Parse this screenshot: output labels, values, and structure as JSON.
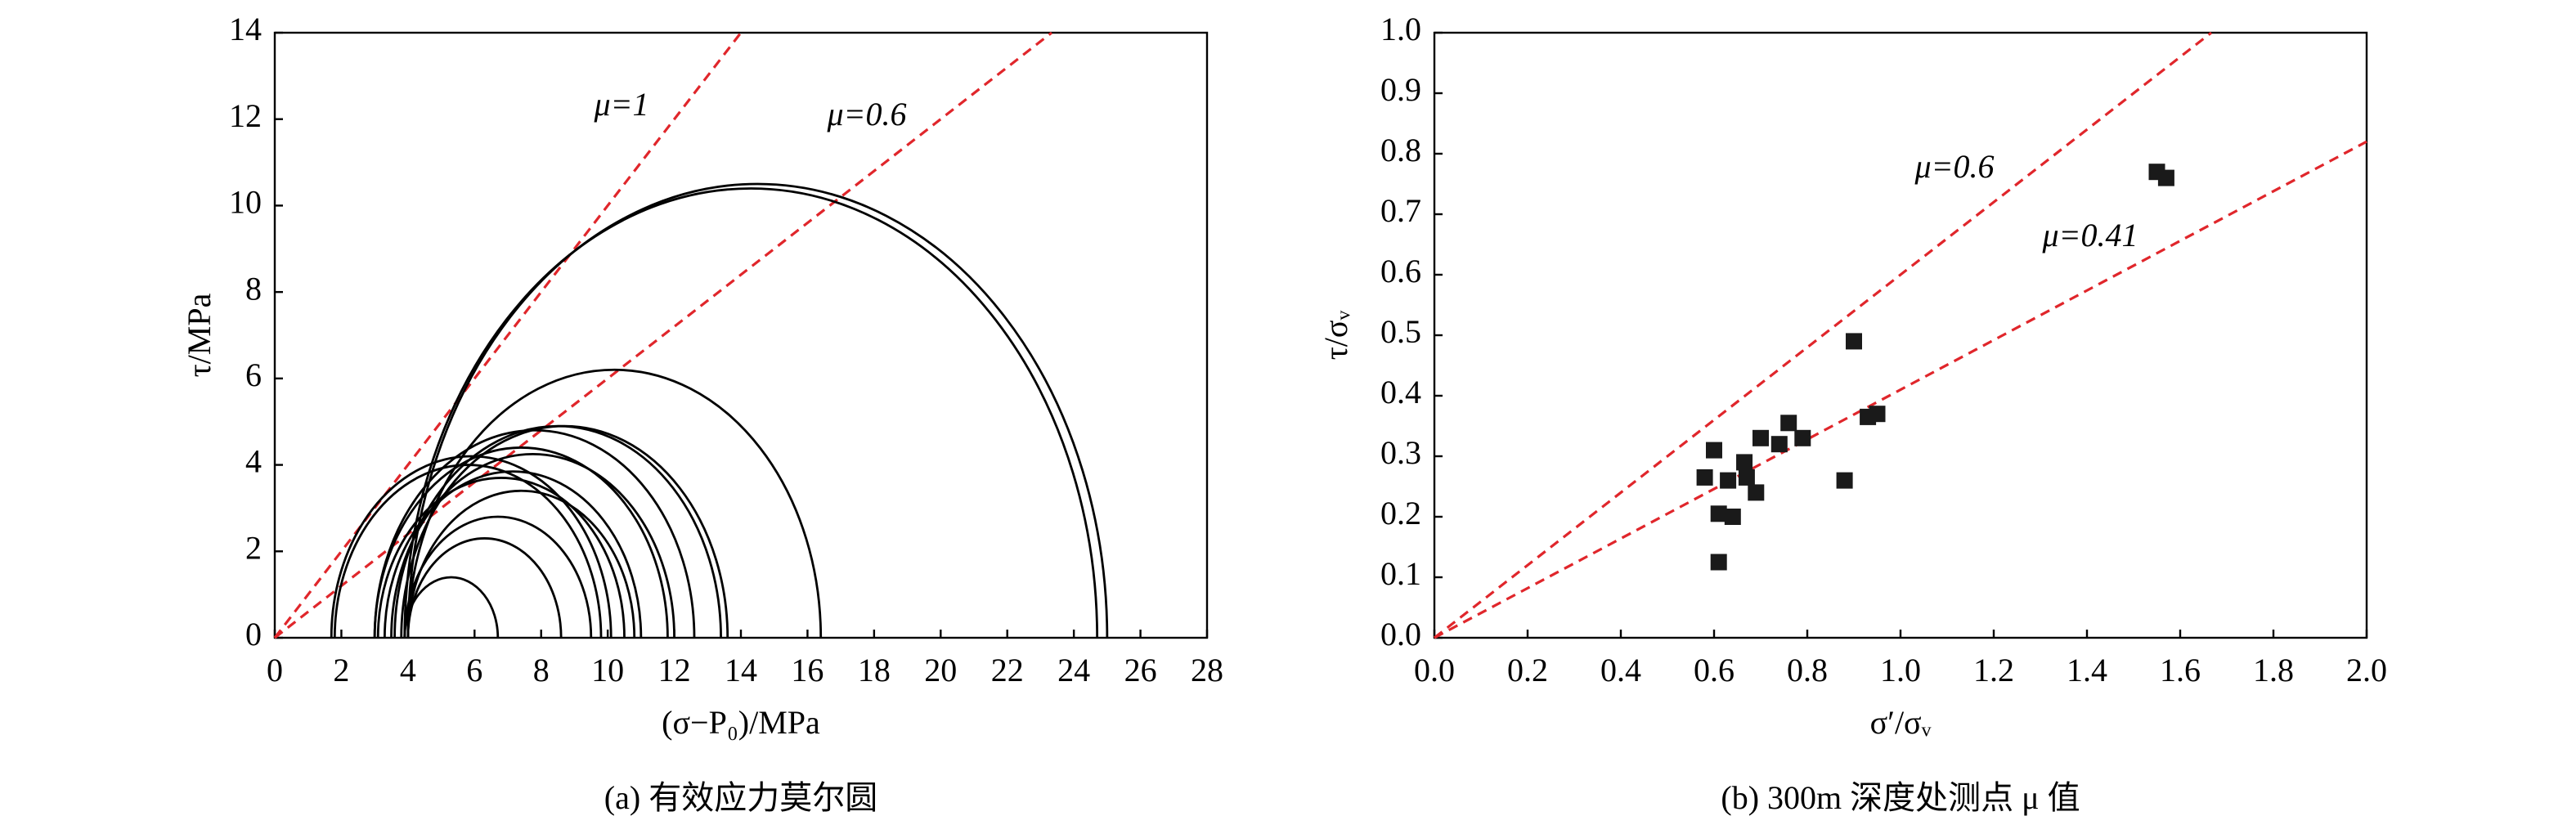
{
  "chart_data": [
    {
      "type": "mohr",
      "xlabel": "(σ−P₀)/MPa",
      "ylabel": "τ/MPa",
      "caption": "(a) 有效应力莫尔圆",
      "xlim": [
        0,
        28
      ],
      "ylim": [
        0,
        14
      ],
      "xticks": [
        0,
        2,
        4,
        6,
        8,
        10,
        12,
        14,
        16,
        18,
        20,
        22,
        24,
        26,
        28
      ],
      "yticks": [
        0,
        2,
        4,
        6,
        8,
        10,
        12,
        14
      ],
      "circle_color": "#000000",
      "sigma3": [
        1.7,
        1.8,
        3.0,
        3.6,
        3.8,
        4.0,
        3.0,
        3.1,
        3.3,
        3.5,
        4.0,
        3.9,
        4.0,
        3.9,
        3.9,
        4.0
      ],
      "sigma1": [
        10.1,
        9.8,
        11.8,
        13.4,
        13.6,
        16.4,
        12.6,
        10.5,
        11.0,
        12.0,
        10.8,
        9.5,
        8.6,
        6.7,
        24.7,
        25.0
      ],
      "lines": [
        {
          "name": "μ=1",
          "slope": 1,
          "color": "#e0262b"
        },
        {
          "name": "μ=0.6",
          "slope": 0.6,
          "color": "#e0262b"
        }
      ]
    },
    {
      "type": "scatter",
      "xlabel": "σ′/σᵥ",
      "ylabel": "τ/σᵥ",
      "caption": "(b) 300m 深度处测点 μ 值",
      "xlim": [
        0,
        2
      ],
      "ylim": [
        0,
        1
      ],
      "xticks": [
        {
          "value": 0,
          "label": "0.0"
        },
        0.2,
        0.4,
        0.6,
        0.8,
        {
          "value": 1,
          "label": "1.0"
        },
        1.2,
        1.4,
        1.6,
        1.8,
        {
          "value": 2,
          "label": "2.0"
        }
      ],
      "yticks": [
        {
          "value": 0,
          "label": "0.0"
        },
        0.1,
        0.2,
        0.3,
        0.4,
        0.5,
        0.6,
        0.7,
        0.8,
        0.9,
        {
          "value": 1,
          "label": "1.0"
        }
      ],
      "color": "#1a1a1a",
      "x": [
        0.58,
        0.6,
        0.61,
        0.61,
        0.63,
        0.64,
        0.665,
        0.67,
        0.69,
        0.7,
        0.74,
        0.76,
        0.79,
        0.88,
        0.9,
        0.93,
        0.95,
        1.55,
        1.57
      ],
      "y": [
        0.265,
        0.31,
        0.205,
        0.125,
        0.26,
        0.2,
        0.29,
        0.265,
        0.24,
        0.33,
        0.32,
        0.355,
        0.33,
        0.26,
        0.49,
        0.365,
        0.37,
        0.77,
        0.76
      ],
      "lines": [
        {
          "name": "μ=0.6",
          "slope": 0.6,
          "color": "#e0262b"
        },
        {
          "name": "μ=0.41",
          "slope": 0.41,
          "color": "#e0262b"
        }
      ]
    }
  ]
}
